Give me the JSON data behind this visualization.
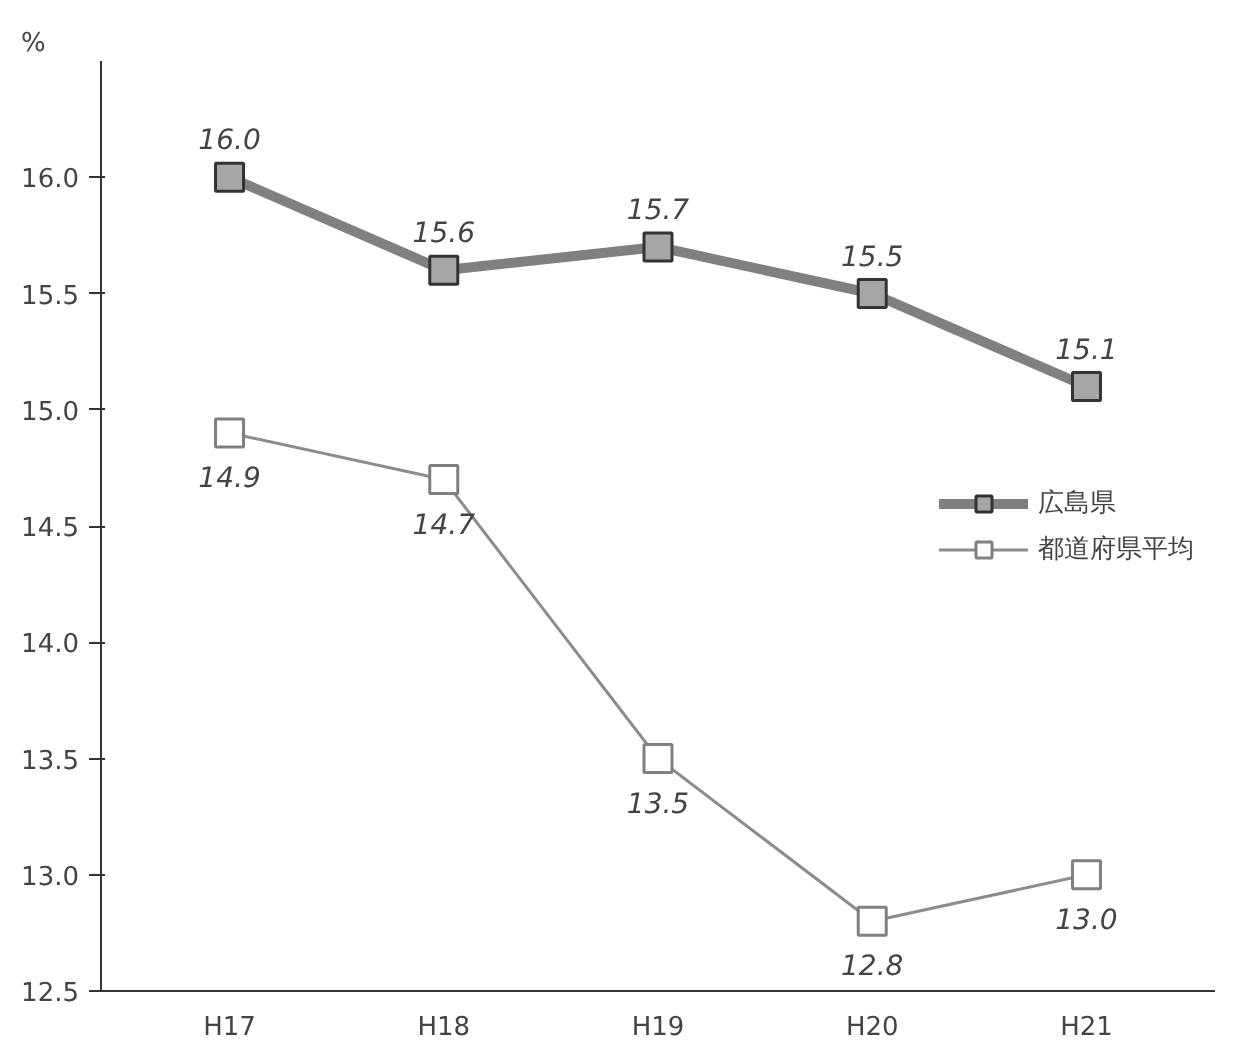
{
  "chart_data": {
    "type": "line",
    "ylabel": "%",
    "categories": [
      "H17",
      "H18",
      "H19",
      "H20",
      "H21"
    ],
    "series": [
      {
        "name": "広島県",
        "color": "#808080",
        "values": [
          16.0,
          15.6,
          15.7,
          15.5,
          15.1
        ],
        "value_labels": [
          "16.0",
          "15.6",
          "15.7",
          "15.5",
          "15.1"
        ]
      },
      {
        "name": "都道府県平均",
        "color": "#8c8c8c",
        "values": [
          14.9,
          14.7,
          13.5,
          12.8,
          13.0
        ],
        "value_labels": [
          "14.9",
          "14.7",
          "13.5",
          "12.8",
          "13.0"
        ]
      }
    ],
    "ylim": [
      12.5,
      16.5
    ],
    "yticks": [
      {
        "value": 12.5,
        "label": "12.5"
      },
      {
        "value": 13.0,
        "label": "13.0"
      },
      {
        "value": 13.5,
        "label": "13.5"
      },
      {
        "value": 14.0,
        "label": "14.0"
      },
      {
        "value": 14.5,
        "label": "14.5"
      },
      {
        "value": 15.0,
        "label": "15.0"
      },
      {
        "value": 15.5,
        "label": "15.5"
      },
      {
        "value": 16.0,
        "label": "16.0"
      }
    ],
    "grid": false,
    "legend": "right",
    "marker": "square",
    "line_style": "solid"
  }
}
